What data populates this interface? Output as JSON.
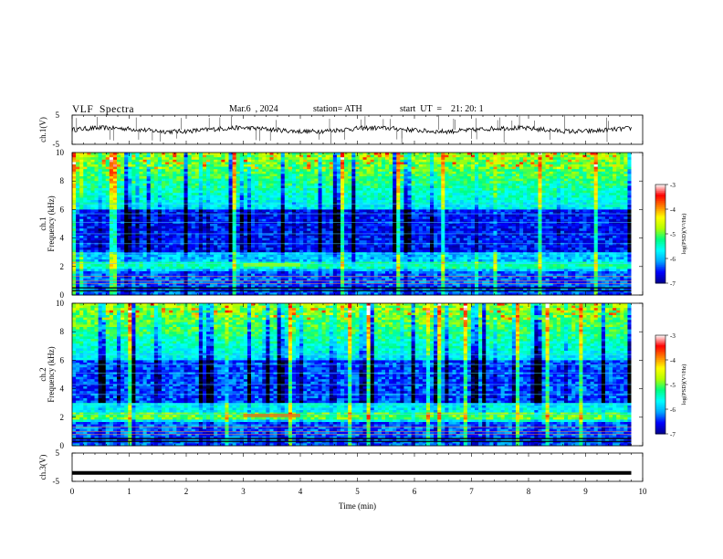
{
  "header": {
    "title": "VLF  Spectra",
    "date": "Mar.6  , 2024",
    "station": "station= ATH",
    "start": "start  UT  =    21: 20: 1"
  },
  "chart_data": [
    {
      "type": "line",
      "panel": "ch1-waveform",
      "ylabel": "ch.1(V)",
      "ylim": [
        -5,
        5
      ],
      "yticks": [
        "5",
        "-5"
      ],
      "xlim": [
        0,
        10
      ],
      "baseline_value": 0
    },
    {
      "type": "heatmap",
      "panel": "ch1-spectrogram",
      "ylabel": "ch.1\nFrequency (kHz)",
      "ylabel_line1": "ch.1",
      "ylabel_line2": "Frequency (kHz)",
      "yticks": [
        "10",
        "8",
        "6",
        "4",
        "2",
        "0"
      ],
      "ylim": [
        0,
        10
      ],
      "xlim": [
        0,
        10
      ],
      "data_extent_min": 9.8,
      "colorbar": {
        "label": "log(PSD)(V²/Hz)",
        "ticks": [
          "-3",
          "-4",
          "-5",
          "-6",
          "-7"
        ],
        "range": [
          -7,
          -3
        ]
      }
    },
    {
      "type": "heatmap",
      "panel": "ch2-spectrogram",
      "ylabel_line1": "ch.2",
      "ylabel_line2": "Frequency (kHz)",
      "yticks": [
        "10",
        "8",
        "6",
        "4",
        "2",
        "0"
      ],
      "ylim": [
        0,
        10
      ],
      "xlim": [
        0,
        10
      ],
      "data_extent_min": 9.8,
      "colorbar": {
        "label": "log(PSD)(V²/Hz)",
        "ticks": [
          "-3",
          "-4",
          "-5",
          "-6",
          "-7"
        ],
        "range": [
          -7,
          -3
        ]
      }
    },
    {
      "type": "line",
      "panel": "ch3-waveform",
      "ylabel": "ch.3(V)",
      "ylim": [
        -5,
        5
      ],
      "yticks": [
        "5",
        "-5"
      ],
      "xlim": [
        0,
        10
      ],
      "constant_value": -2,
      "data_extent_min": 9.8
    }
  ],
  "xaxis": {
    "label": "Time  (min)",
    "ticks": [
      "0",
      "1",
      "2",
      "3",
      "4",
      "5",
      "6",
      "7",
      "8",
      "9",
      "10"
    ]
  },
  "colors": {
    "colormap": [
      "#000000",
      "#00008c",
      "#0000ff",
      "#00aaff",
      "#00ffff",
      "#00ff80",
      "#b4ff00",
      "#ffff00",
      "#ff8000",
      "#ff0000",
      "#ffffff"
    ]
  }
}
